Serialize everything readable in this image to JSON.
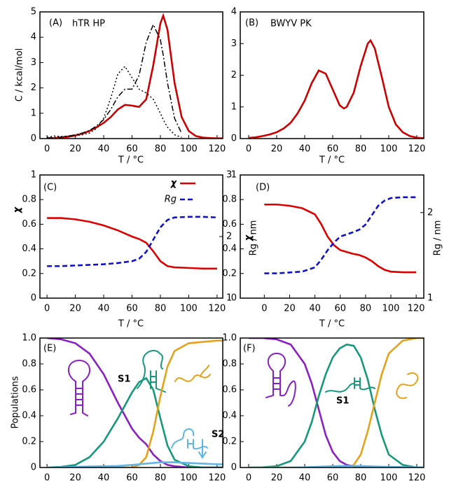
{
  "chart_data": [
    {
      "type": "line",
      "annotations": [
        "(A)",
        "hTR HP"
      ],
      "xlabel": "T / °C",
      "ylabel": "C / kcal/mol",
      "x": [
        0,
        5,
        10,
        15,
        20,
        25,
        30,
        35,
        40,
        45,
        50,
        55,
        60,
        65,
        70,
        75,
        80,
        82,
        85,
        90,
        95,
        100,
        105,
        110,
        115,
        120,
        124
      ],
      "xlim": [
        -5,
        124
      ],
      "xticks": [
        0,
        20,
        40,
        60,
        80,
        100,
        120
      ],
      "ylim": [
        0,
        5
      ],
      "yticks": [
        0,
        1,
        2,
        3,
        4,
        5
      ],
      "series": [
        {
          "color": "#cc0000",
          "dash": "solid",
          "values": [
            0.01,
            0.02,
            0.04,
            0.07,
            0.12,
            0.2,
            0.3,
            0.45,
            0.62,
            0.85,
            1.15,
            1.33,
            1.3,
            1.25,
            1.55,
            2.9,
            4.55,
            4.85,
            4.3,
            2.2,
            0.85,
            0.3,
            0.1,
            0.04,
            0.02,
            0.01,
            0.01
          ]
        },
        {
          "color": "#000000",
          "dash": "dashdot",
          "values": [
            0.02,
            0.04,
            0.06,
            0.1,
            0.15,
            0.22,
            0.32,
            0.5,
            0.75,
            1.15,
            1.65,
            1.95,
            1.95,
            2.5,
            3.8,
            4.5,
            3.9,
            3.3,
            2.2,
            0.8,
            0.2,
            null,
            null,
            null,
            null,
            null,
            null
          ]
        },
        {
          "color": "#000000",
          "dash": "dotted",
          "values": [
            0.05,
            0.1,
            0.08,
            0.1,
            0.12,
            0.15,
            0.22,
            0.4,
            0.8,
            1.6,
            2.55,
            2.85,
            2.4,
            1.95,
            1.8,
            1.55,
            1.0,
            0.75,
            0.45,
            0.15,
            0.05,
            null,
            null,
            null,
            null,
            null,
            null
          ]
        }
      ]
    },
    {
      "type": "line",
      "annotations": [
        "(B)",
        "BWYV PK"
      ],
      "xlabel": "T / °C",
      "x": [
        0,
        5,
        10,
        15,
        20,
        25,
        30,
        35,
        40,
        45,
        50,
        55,
        60,
        65,
        68,
        70,
        75,
        80,
        85,
        87,
        90,
        95,
        100,
        105,
        110,
        115,
        120,
        125
      ],
      "xlim": [
        -6,
        125
      ],
      "xticks": [
        0,
        20,
        40,
        60,
        80,
        100,
        120
      ],
      "ylim": [
        0,
        4
      ],
      "yticks": [
        0,
        1,
        2,
        3,
        4
      ],
      "series": [
        {
          "color": "#cc0000",
          "dash": "solid",
          "values": [
            0.02,
            0.04,
            0.08,
            0.13,
            0.2,
            0.32,
            0.5,
            0.8,
            1.2,
            1.75,
            2.15,
            2.05,
            1.55,
            1.05,
            0.95,
            1.0,
            1.45,
            2.3,
            3.0,
            3.1,
            2.85,
            1.95,
            1.0,
            0.45,
            0.2,
            0.08,
            0.03,
            0.01
          ]
        }
      ]
    },
    {
      "type": "line",
      "annotations": [
        "(C)"
      ],
      "xlabel": "T / °C",
      "ylabel": "χ",
      "y2label": "Rg / nm",
      "x": [
        0,
        10,
        20,
        30,
        40,
        50,
        60,
        65,
        70,
        75,
        80,
        85,
        90,
        100,
        110,
        120
      ],
      "xlim": [
        -5,
        124
      ],
      "xticks": [
        0,
        20,
        40,
        60,
        80,
        100,
        120
      ],
      "ylim": [
        0,
        1
      ],
      "yticks": [
        0,
        0.2,
        0.4,
        0.6,
        0.8,
        1
      ],
      "y2lim": [
        1,
        3
      ],
      "y2ticks": [
        1,
        2,
        3
      ],
      "series": [
        {
          "name": "χ",
          "color": "#dd0000",
          "dash": "solid",
          "values": [
            0.65,
            0.65,
            0.64,
            0.62,
            0.59,
            0.55,
            0.5,
            0.48,
            0.45,
            0.38,
            0.3,
            0.26,
            0.25,
            0.245,
            0.24,
            0.24
          ]
        },
        {
          "name": "Rg",
          "color": "#1111cc",
          "dash": "dashed",
          "axis": "y2",
          "values": [
            1.52,
            1.52,
            1.53,
            1.54,
            1.55,
            1.57,
            1.6,
            1.64,
            1.75,
            1.95,
            2.15,
            2.27,
            2.31,
            2.32,
            2.32,
            2.31
          ]
        }
      ]
    },
    {
      "type": "line",
      "annotations": [
        "(D)"
      ],
      "xlabel": "T / °C",
      "ylabel": "χ",
      "y2label": "Rg / nm",
      "x": [
        0,
        10,
        20,
        30,
        40,
        45,
        50,
        55,
        60,
        70,
        75,
        80,
        85,
        90,
        95,
        100,
        110,
        120
      ],
      "xlim": [
        -19,
        126
      ],
      "xticks": [
        0,
        20,
        40,
        60,
        80,
        100,
        120
      ],
      "ylim": [
        0,
        1
      ],
      "yticks": [
        0,
        0.2,
        0.4,
        0.6,
        0.8,
        1
      ],
      "y2lim": [
        1,
        2.44
      ],
      "y2ticks": [
        1,
        2
      ],
      "series": [
        {
          "color": "#dd0000",
          "dash": "solid",
          "values": [
            0.76,
            0.76,
            0.75,
            0.73,
            0.68,
            0.6,
            0.5,
            0.43,
            0.39,
            0.36,
            0.35,
            0.33,
            0.3,
            0.26,
            0.23,
            0.215,
            0.21,
            0.21
          ]
        },
        {
          "color": "#1111cc",
          "dash": "dashed",
          "axis": "y2",
          "values": [
            1.29,
            1.29,
            1.3,
            1.31,
            1.36,
            1.45,
            1.56,
            1.65,
            1.72,
            1.77,
            1.8,
            1.86,
            1.97,
            2.08,
            2.14,
            2.17,
            2.18,
            2.18
          ]
        }
      ]
    },
    {
      "type": "line",
      "annotations": [
        "(E)",
        "S1",
        "S2"
      ],
      "ylabel": "Populations",
      "x": [
        0,
        10,
        20,
        30,
        40,
        50,
        60,
        65,
        70,
        75,
        80,
        85,
        90,
        100,
        110,
        120,
        124
      ],
      "xlim": [
        -5,
        124
      ],
      "xticks": [
        0,
        20,
        40,
        60,
        80,
        100,
        120
      ],
      "ylim": [
        0,
        1
      ],
      "yticks": [
        0,
        0.2,
        0.4,
        0.6,
        0.8,
        {
          "value": 1,
          "label": "1.0"
        }
      ],
      "series": [
        {
          "color": "#8a1fc4",
          "dash": "solid",
          "values": [
            1.0,
            0.99,
            0.96,
            0.88,
            0.72,
            0.5,
            0.3,
            0.23,
            0.18,
            0.1,
            0.05,
            0.02,
            0.01,
            0,
            0,
            0,
            0
          ]
        },
        {
          "color": "#16997a",
          "dash": "solid",
          "values": [
            0,
            0.005,
            0.02,
            0.08,
            0.2,
            0.38,
            0.58,
            0.66,
            0.69,
            0.6,
            0.38,
            0.17,
            0.06,
            0.01,
            0,
            0,
            0
          ]
        },
        {
          "color": "#e6a11a",
          "dash": "solid",
          "values": [
            0,
            0,
            0,
            0,
            0,
            0,
            0,
            0.02,
            0.08,
            0.28,
            0.55,
            0.78,
            0.9,
            0.96,
            0.97,
            0.98,
            0.98
          ]
        },
        {
          "color": "#5fb6e6",
          "dash": "solid",
          "values": [
            0,
            0.002,
            0.005,
            0.008,
            0.01,
            0.012,
            0.02,
            0.025,
            0.03,
            0.035,
            0.04,
            0.04,
            0.04,
            0.035,
            0.03,
            0.025,
            0.025
          ]
        }
      ]
    },
    {
      "type": "line",
      "annotations": [
        "(F)",
        "S1"
      ],
      "x": [
        0,
        10,
        20,
        30,
        40,
        45,
        50,
        55,
        60,
        65,
        70,
        75,
        80,
        85,
        90,
        95,
        100,
        110,
        120,
        125
      ],
      "xlim": [
        -6,
        125
      ],
      "xticks": [
        0,
        20,
        40,
        60,
        80,
        100,
        120
      ],
      "ylim": [
        0,
        1
      ],
      "yticks": [
        0,
        0.2,
        0.4,
        0.6,
        0.8,
        {
          "value": 1,
          "label": "1.0"
        }
      ],
      "series": [
        {
          "color": "#8a1fc4",
          "dash": "solid",
          "values": [
            1,
            1,
            0.99,
            0.95,
            0.8,
            0.65,
            0.45,
            0.25,
            0.12,
            0.05,
            0.02,
            0.01,
            0,
            0,
            0,
            0,
            0,
            0,
            0,
            0
          ]
        },
        {
          "color": "#16997a",
          "dash": "solid",
          "values": [
            0,
            0.002,
            0.01,
            0.05,
            0.2,
            0.35,
            0.55,
            0.72,
            0.85,
            0.92,
            0.95,
            0.94,
            0.85,
            0.68,
            0.45,
            0.25,
            0.1,
            0.02,
            0,
            0
          ]
        },
        {
          "color": "#e6a11a",
          "dash": "solid",
          "values": [
            0,
            0,
            0,
            0,
            0,
            0,
            0,
            0,
            0,
            0,
            0,
            0.02,
            0.1,
            0.28,
            0.5,
            0.72,
            0.88,
            0.98,
            1,
            1
          ]
        },
        {
          "color": "#5fb6e6",
          "dash": "solid",
          "values": [
            0,
            0,
            0,
            0,
            0.002,
            0.004,
            0.006,
            0.008,
            0.01,
            0.012,
            0.012,
            0.012,
            0.012,
            0.01,
            0.008,
            0.006,
            0.005,
            0.003,
            0.002,
            0.001
          ]
        }
      ]
    }
  ]
}
